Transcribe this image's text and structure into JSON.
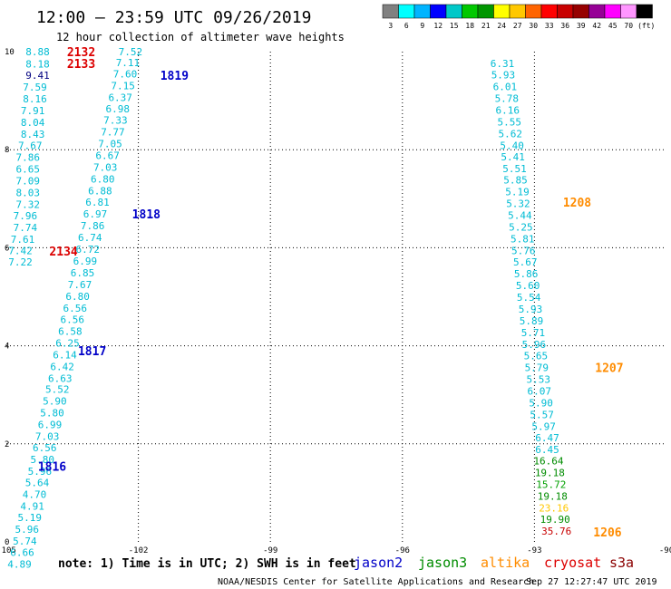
{
  "header": {
    "title": "12:00 — 23:59 UTC 09/26/2019",
    "subtitle": "12 hour collection of altimeter wave heights"
  },
  "legend": {
    "colors": [
      "#808080",
      "#00ffff",
      "#00b4ff",
      "#0000ff",
      "#00c8c8",
      "#00c800",
      "#009600",
      "#ffff00",
      "#ffc800",
      "#ff6400",
      "#ff0000",
      "#c80000",
      "#960000",
      "#960096",
      "#ff00ff",
      "#ff96ff",
      "#000000"
    ],
    "labels": [
      "3",
      "6",
      "9",
      "12",
      "15",
      "18",
      "21",
      "24",
      "27",
      "30",
      "33",
      "36",
      "39",
      "42",
      "45",
      "70",
      "(ft)"
    ]
  },
  "colors": {
    "jason2": "#0000c8",
    "jason3": "#008c00",
    "altika": "#ff8c00",
    "cryosat": "#dc0000",
    "s3a": "#8b0000",
    "value_default": "#00bcd4",
    "grid": "#000000"
  },
  "footer": {
    "note": "note: 1) Time is in UTC; 2) SWH is in feet",
    "credit": "NOAA/NESDIS Center for Satellite Applications and Research",
    "timestamp": "Sep 27 12:27:47 UTC 2019",
    "satellites": [
      {
        "name": "jason2",
        "color": "#0000c8"
      },
      {
        "name": "jason3",
        "color": "#008c00"
      },
      {
        "name": "altika",
        "color": "#ff8c00"
      },
      {
        "name": "cryosat",
        "color": "#dc0000"
      },
      {
        "name": "s3a",
        "color": "#8b0000"
      }
    ]
  },
  "chart_data": {
    "type": "scatter",
    "title": "12:00 — 23:59 UTC 09/26/2019",
    "subtitle": "12 hour collection of altimeter wave heights",
    "xlim": [
      -105,
      -90
    ],
    "ylim": [
      0,
      10
    ],
    "xticks": [
      "-105",
      "-102",
      "-99",
      "-96",
      "-93",
      "-90"
    ],
    "yticks": [
      "0",
      "2",
      "4",
      "6",
      "8",
      "10"
    ],
    "grid": true,
    "tracks": [
      {
        "satellite": "jason2",
        "points": [
          {
            "lon": -104.29,
            "lat": 10.0,
            "v": "8.88"
          },
          {
            "lon": -104.29,
            "lat": 9.75,
            "v": "8.18"
          },
          {
            "lon": -104.29,
            "lat": 9.52,
            "v": "9.41",
            "color": "#000080"
          },
          {
            "lon": -104.35,
            "lat": 9.28,
            "v": "7.59"
          },
          {
            "lon": -104.35,
            "lat": 9.04,
            "v": "8.16"
          },
          {
            "lon": -104.4,
            "lat": 8.8,
            "v": "7.91"
          },
          {
            "lon": -104.4,
            "lat": 8.56,
            "v": "8.04"
          },
          {
            "lon": -104.4,
            "lat": 8.32,
            "v": "8.43"
          },
          {
            "lon": -104.46,
            "lat": 8.09,
            "v": "7.67"
          },
          {
            "lon": -104.51,
            "lat": 7.85,
            "v": "7.86"
          },
          {
            "lon": -104.51,
            "lat": 7.61,
            "v": "6.65"
          },
          {
            "lon": -104.51,
            "lat": 7.37,
            "v": "7.09"
          },
          {
            "lon": -104.51,
            "lat": 7.13,
            "v": "8.03"
          },
          {
            "lon": -104.51,
            "lat": 6.89,
            "v": "7.32"
          },
          {
            "lon": -104.57,
            "lat": 6.65,
            "v": "7.96"
          },
          {
            "lon": -104.57,
            "lat": 6.41,
            "v": "7.74"
          },
          {
            "lon": -104.63,
            "lat": 6.17,
            "v": "7.61"
          },
          {
            "lon": -104.68,
            "lat": 5.94,
            "v": "7.42"
          },
          {
            "lon": -104.68,
            "lat": 5.71,
            "v": "7.22"
          }
        ]
      },
      {
        "satellite": "jason2",
        "points": [
          {
            "lon": -102.18,
            "lat": 10.0,
            "v": "7.52"
          },
          {
            "lon": -102.24,
            "lat": 9.78,
            "v": "7.11"
          },
          {
            "lon": -102.3,
            "lat": 9.55,
            "v": "7.60"
          },
          {
            "lon": -102.35,
            "lat": 9.31,
            "v": "7.15"
          },
          {
            "lon": -102.41,
            "lat": 9.07,
            "v": "6.37"
          },
          {
            "lon": -102.47,
            "lat": 8.84,
            "v": "6.98"
          },
          {
            "lon": -102.52,
            "lat": 8.6,
            "v": "7.33"
          },
          {
            "lon": -102.58,
            "lat": 8.36,
            "v": "7.77"
          },
          {
            "lon": -102.64,
            "lat": 8.12,
            "v": "7.05"
          },
          {
            "lon": -102.7,
            "lat": 7.88,
            "v": "6.67"
          },
          {
            "lon": -102.75,
            "lat": 7.64,
            "v": "7.03"
          },
          {
            "lon": -102.81,
            "lat": 7.4,
            "v": "6.80"
          },
          {
            "lon": -102.87,
            "lat": 7.16,
            "v": "6.88"
          },
          {
            "lon": -102.93,
            "lat": 6.93,
            "v": "6.81"
          },
          {
            "lon": -102.98,
            "lat": 6.69,
            "v": "6.97"
          },
          {
            "lon": -103.04,
            "lat": 6.45,
            "v": "7.86"
          },
          {
            "lon": -103.1,
            "lat": 6.21,
            "v": "6.74"
          },
          {
            "lon": -103.15,
            "lat": 5.97,
            "v": "6.72"
          },
          {
            "lon": -103.21,
            "lat": 5.73,
            "v": "6.99"
          },
          {
            "lon": -103.27,
            "lat": 5.49,
            "v": "6.85"
          },
          {
            "lon": -103.33,
            "lat": 5.25,
            "v": "7.67"
          },
          {
            "lon": -103.38,
            "lat": 5.01,
            "v": "6.80"
          },
          {
            "lon": -103.44,
            "lat": 4.77,
            "v": "6.56"
          },
          {
            "lon": -103.5,
            "lat": 4.54,
            "v": "6.56"
          },
          {
            "lon": -103.55,
            "lat": 4.3,
            "v": "6.58"
          },
          {
            "lon": -103.61,
            "lat": 4.06,
            "v": "6.25"
          },
          {
            "lon": -103.67,
            "lat": 3.82,
            "v": "6.14"
          },
          {
            "lon": -103.73,
            "lat": 3.58,
            "v": "6.42"
          },
          {
            "lon": -103.78,
            "lat": 3.34,
            "v": "6.63"
          },
          {
            "lon": -103.84,
            "lat": 3.11,
            "v": "5.52"
          },
          {
            "lon": -103.9,
            "lat": 2.87,
            "v": "5.90"
          },
          {
            "lon": -103.96,
            "lat": 2.63,
            "v": "5.80"
          },
          {
            "lon": -104.01,
            "lat": 2.39,
            "v": "6.99"
          },
          {
            "lon": -104.07,
            "lat": 2.15,
            "v": "7.03"
          },
          {
            "lon": -104.13,
            "lat": 1.92,
            "v": "6.56"
          },
          {
            "lon": -104.18,
            "lat": 1.68,
            "v": "5.80"
          },
          {
            "lon": -104.24,
            "lat": 1.44,
            "v": "5.96"
          },
          {
            "lon": -104.3,
            "lat": 1.21,
            "v": "5.64"
          },
          {
            "lon": -104.36,
            "lat": 0.97,
            "v": "4.70"
          },
          {
            "lon": -104.41,
            "lat": 0.73,
            "v": "4.91"
          },
          {
            "lon": -104.47,
            "lat": 0.5,
            "v": "5.19"
          },
          {
            "lon": -104.53,
            "lat": 0.26,
            "v": "5.96"
          },
          {
            "lon": -104.58,
            "lat": 0.02,
            "v": "5.74"
          },
          {
            "lon": -104.64,
            "lat": -0.21,
            "v": "6.66"
          },
          {
            "lon": -104.7,
            "lat": -0.45,
            "v": "4.89"
          }
        ]
      },
      {
        "satellite": "altika",
        "points": [
          {
            "lon": -93.73,
            "lat": 9.76,
            "v": "6.31"
          },
          {
            "lon": -93.71,
            "lat": 9.53,
            "v": "5.93"
          },
          {
            "lon": -93.67,
            "lat": 9.29,
            "v": "6.01"
          },
          {
            "lon": -93.63,
            "lat": 9.05,
            "v": "5.78"
          },
          {
            "lon": -93.61,
            "lat": 8.81,
            "v": "6.16"
          },
          {
            "lon": -93.57,
            "lat": 8.57,
            "v": "5.55"
          },
          {
            "lon": -93.55,
            "lat": 8.33,
            "v": "5.62"
          },
          {
            "lon": -93.51,
            "lat": 8.09,
            "v": "5.40"
          },
          {
            "lon": -93.49,
            "lat": 7.86,
            "v": "5.41"
          },
          {
            "lon": -93.45,
            "lat": 7.62,
            "v": "5.51"
          },
          {
            "lon": -93.43,
            "lat": 7.38,
            "v": "5.85"
          },
          {
            "lon": -93.39,
            "lat": 7.14,
            "v": "5.19"
          },
          {
            "lon": -93.37,
            "lat": 6.9,
            "v": "5.32"
          },
          {
            "lon": -93.33,
            "lat": 6.66,
            "v": "5.44"
          },
          {
            "lon": -93.31,
            "lat": 6.42,
            "v": "5.25"
          },
          {
            "lon": -93.27,
            "lat": 6.18,
            "v": "5.81"
          },
          {
            "lon": -93.25,
            "lat": 5.94,
            "v": "5.76"
          },
          {
            "lon": -93.21,
            "lat": 5.71,
            "v": "5.67"
          },
          {
            "lon": -93.19,
            "lat": 5.47,
            "v": "5.86"
          },
          {
            "lon": -93.15,
            "lat": 5.23,
            "v": "5.60"
          },
          {
            "lon": -93.13,
            "lat": 4.99,
            "v": "5.54"
          },
          {
            "lon": -93.09,
            "lat": 4.75,
            "v": "5.93"
          },
          {
            "lon": -93.07,
            "lat": 4.51,
            "v": "5.89"
          },
          {
            "lon": -93.03,
            "lat": 4.27,
            "v": "5.71"
          },
          {
            "lon": -93.01,
            "lat": 4.03,
            "v": "5.96"
          },
          {
            "lon": -92.97,
            "lat": 3.8,
            "v": "5.65"
          },
          {
            "lon": -92.95,
            "lat": 3.56,
            "v": "5.79"
          },
          {
            "lon": -92.91,
            "lat": 3.32,
            "v": "5.53"
          },
          {
            "lon": -92.89,
            "lat": 3.08,
            "v": "6.07"
          },
          {
            "lon": -92.85,
            "lat": 2.84,
            "v": "5.90"
          },
          {
            "lon": -92.83,
            "lat": 2.6,
            "v": "5.57"
          },
          {
            "lon": -92.79,
            "lat": 2.36,
            "v": "5.97"
          },
          {
            "lon": -92.71,
            "lat": 2.13,
            "v": "6.47"
          },
          {
            "lon": -92.71,
            "lat": 1.89,
            "v": "6.45"
          },
          {
            "lon": -92.68,
            "lat": 1.65,
            "v": "16.64",
            "color": "#008c00"
          },
          {
            "lon": -92.65,
            "lat": 1.41,
            "v": "19.18",
            "color": "#008c00"
          },
          {
            "lon": -92.62,
            "lat": 1.17,
            "v": "15.72",
            "color": "#00a000"
          },
          {
            "lon": -92.59,
            "lat": 0.93,
            "v": "19.18",
            "color": "#008c00"
          },
          {
            "lon": -92.56,
            "lat": 0.69,
            "v": "23.16",
            "color": "#ffc800"
          },
          {
            "lon": -92.53,
            "lat": 0.46,
            "v": "19.90",
            "color": "#008c00"
          },
          {
            "lon": -92.5,
            "lat": 0.22,
            "v": "35.76",
            "color": "#c80000"
          }
        ]
      }
    ],
    "pass_labels": [
      {
        "label": "2132",
        "lon": -103.3,
        "lat": 10.0,
        "color": "#dc0000"
      },
      {
        "label": "2133",
        "lon": -103.3,
        "lat": 9.76,
        "color": "#dc0000"
      },
      {
        "label": "1819",
        "lon": -101.18,
        "lat": 9.52,
        "color": "#0000c8"
      },
      {
        "label": "1818",
        "lon": -101.82,
        "lat": 6.69,
        "color": "#0000c8"
      },
      {
        "label": "2134",
        "lon": -103.7,
        "lat": 5.93,
        "color": "#dc0000"
      },
      {
        "label": "1817",
        "lon": -103.05,
        "lat": 3.9,
        "color": "#0000c8"
      },
      {
        "label": "1816",
        "lon": -103.96,
        "lat": 1.54,
        "color": "#0000c8"
      },
      {
        "label": "1208",
        "lon": -92.03,
        "lat": 6.93,
        "color": "#ff8c00"
      },
      {
        "label": "1207",
        "lon": -91.3,
        "lat": 3.56,
        "color": "#ff8c00"
      },
      {
        "label": "1206",
        "lon": -91.34,
        "lat": 0.2,
        "color": "#ff8c00"
      }
    ]
  }
}
